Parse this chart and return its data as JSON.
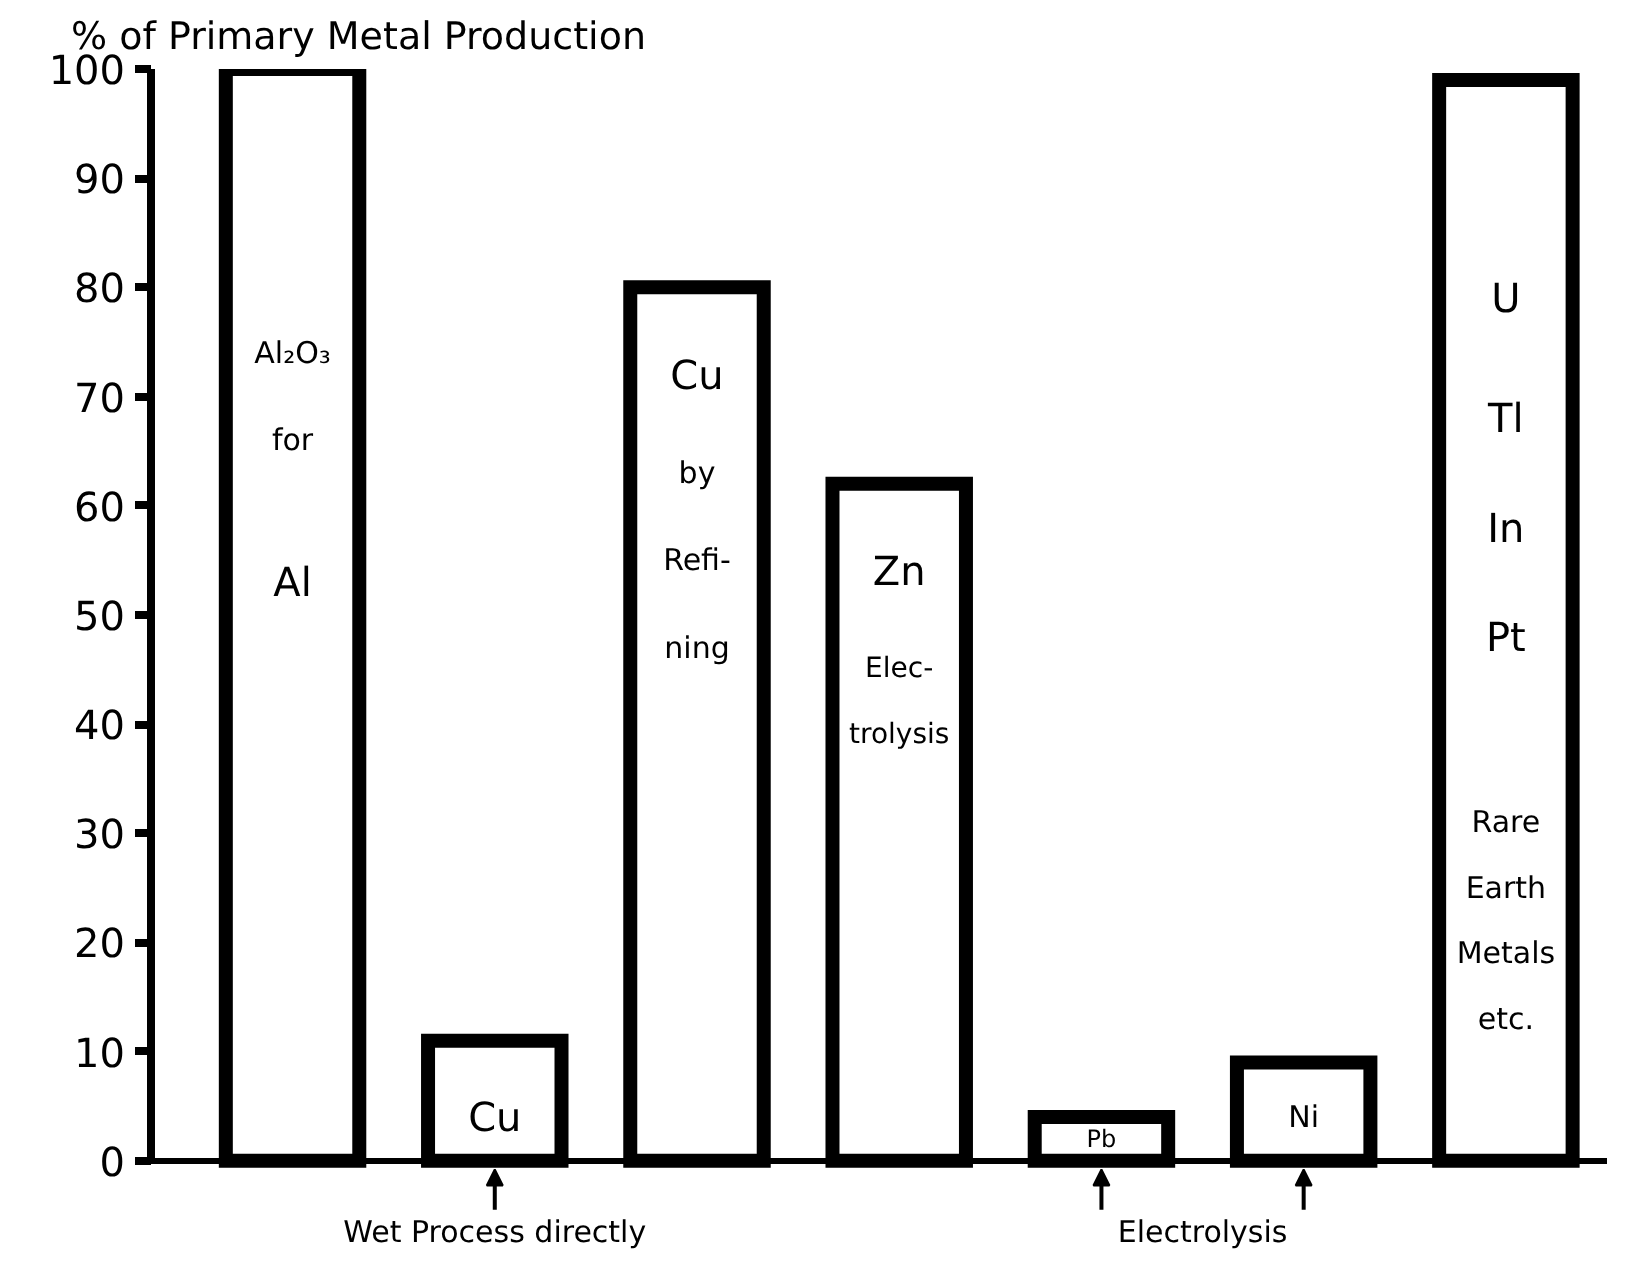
{
  "chart_data": {
    "type": "bar",
    "ylabel": "% of Primary Metal Production",
    "categories": [
      null,
      null,
      null,
      null,
      null,
      null,
      null
    ],
    "values": [
      100,
      11,
      80,
      62,
      4,
      9,
      99
    ],
    "color": "#000000",
    "ylim": [
      0,
      100
    ],
    "yticks": [
      0,
      10,
      20,
      30,
      40,
      50,
      60,
      70,
      80,
      90,
      100
    ],
    "tick_labels": "y",
    "annotations": [
      "Al₂O₃",
      "for",
      "Al",
      "Cu",
      "by",
      "Refi-",
      "ning",
      "Cu",
      "Wet Process directly",
      "Zn",
      "Elec-",
      "trolysis",
      "Pb",
      "Ni",
      "Electrolysis",
      "U",
      "Tl",
      "In",
      "Pt",
      "Rare",
      "Earth",
      "Metals",
      "etc."
    ]
  }
}
